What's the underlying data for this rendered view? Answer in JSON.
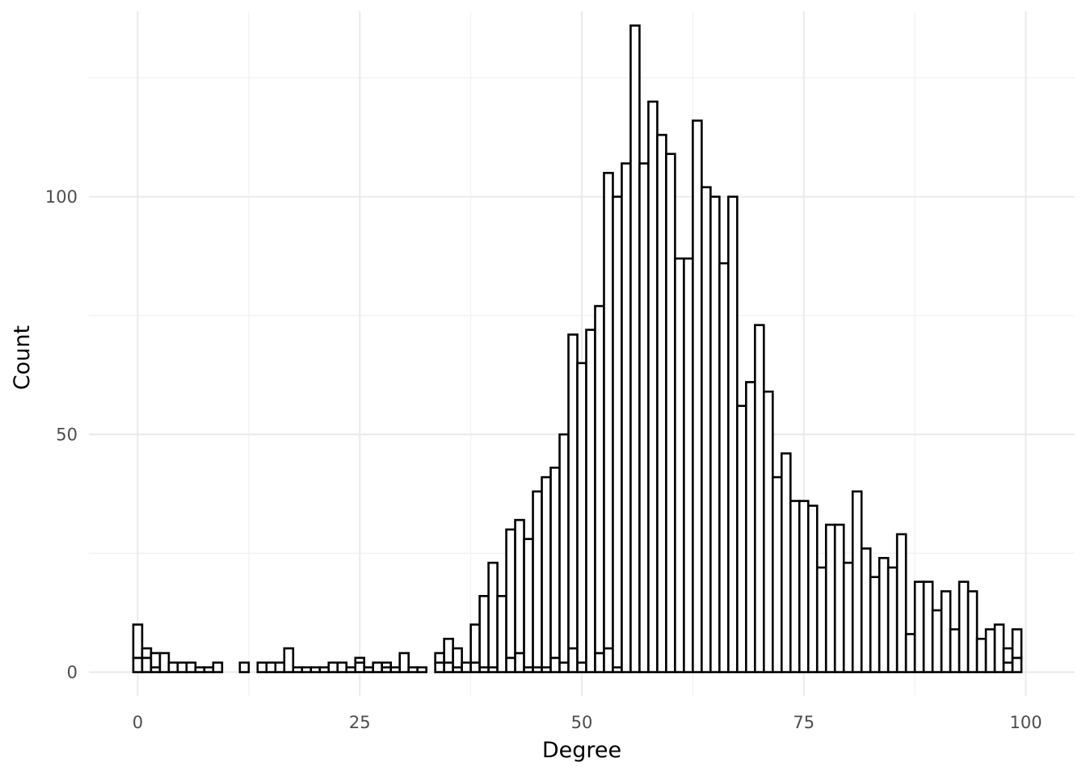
{
  "chart_data": {
    "type": "bar",
    "title": "",
    "xlabel": "Degree",
    "ylabel": "Count",
    "xlim": [
      -5.5,
      105.5
    ],
    "ylim": [
      -5,
      139
    ],
    "x_ticks": [
      0,
      25,
      50,
      75,
      100
    ],
    "y_ticks": [
      0,
      50,
      100
    ],
    "x_tick_labels": [
      "0",
      "25",
      "50",
      "75",
      "100"
    ],
    "y_tick_labels": [
      "0",
      "50",
      "100"
    ],
    "grid": true,
    "legend": "none",
    "bin_width": 1,
    "stacked": true,
    "bins": [
      0,
      1,
      2,
      3,
      4,
      5,
      6,
      7,
      8,
      9,
      12,
      14,
      15,
      16,
      17,
      18,
      19,
      20,
      21,
      22,
      23,
      24,
      25,
      26,
      27,
      28,
      29,
      30,
      31,
      32,
      34,
      35,
      36,
      37,
      38,
      39,
      40,
      41,
      42,
      43,
      44,
      45,
      46,
      47,
      48,
      49,
      50,
      51,
      52,
      53,
      54,
      55,
      56,
      57,
      58,
      59,
      60,
      61,
      62,
      63,
      64,
      65,
      66,
      67,
      68,
      69,
      70,
      71,
      72,
      73,
      74,
      75,
      76,
      77,
      78,
      79,
      80,
      81,
      82,
      83,
      84,
      85,
      86,
      87,
      88,
      89,
      90,
      91,
      92,
      93,
      94,
      95,
      96,
      97,
      98,
      99
    ],
    "series": [
      {
        "values": [
          3,
          3,
          1,
          0,
          0,
          0,
          0,
          0,
          0,
          0,
          0,
          0,
          0,
          0,
          0,
          0,
          0,
          0,
          0,
          0,
          0,
          0,
          2,
          0,
          0,
          1,
          0,
          0,
          0,
          0,
          2,
          2,
          1,
          2,
          2,
          1,
          1,
          0,
          3,
          4,
          1,
          1,
          1,
          3,
          2,
          5,
          2,
          0,
          4,
          5,
          1,
          0,
          0,
          0,
          0,
          0,
          0,
          0,
          0,
          0,
          0,
          0,
          0,
          0,
          0,
          0,
          0,
          0,
          0,
          0,
          0,
          0,
          0,
          0,
          0,
          0,
          0,
          0,
          0,
          0,
          0,
          0,
          0,
          0,
          0,
          0,
          0,
          0,
          0,
          0,
          0,
          0,
          0,
          0,
          2,
          3
        ]
      },
      {
        "values": [
          7,
          2,
          3,
          4,
          2,
          2,
          2,
          1,
          1,
          2,
          2,
          2,
          2,
          2,
          5,
          1,
          1,
          1,
          1,
          2,
          2,
          1,
          1,
          1,
          2,
          1,
          1,
          4,
          1,
          1,
          2,
          5,
          4,
          0,
          8,
          15,
          22,
          16,
          27,
          28,
          27,
          37,
          40,
          40,
          48,
          66,
          63,
          72,
          73,
          100,
          99,
          107,
          136,
          107,
          120,
          113,
          109,
          87,
          87,
          116,
          102,
          100,
          86,
          100,
          56,
          61,
          73,
          59,
          41,
          46,
          36,
          36,
          35,
          22,
          31,
          31,
          23,
          38,
          26,
          20,
          24,
          22,
          29,
          8,
          19,
          19,
          13,
          17,
          9,
          19,
          17,
          7,
          9,
          10,
          3,
          6
        ]
      }
    ]
  }
}
